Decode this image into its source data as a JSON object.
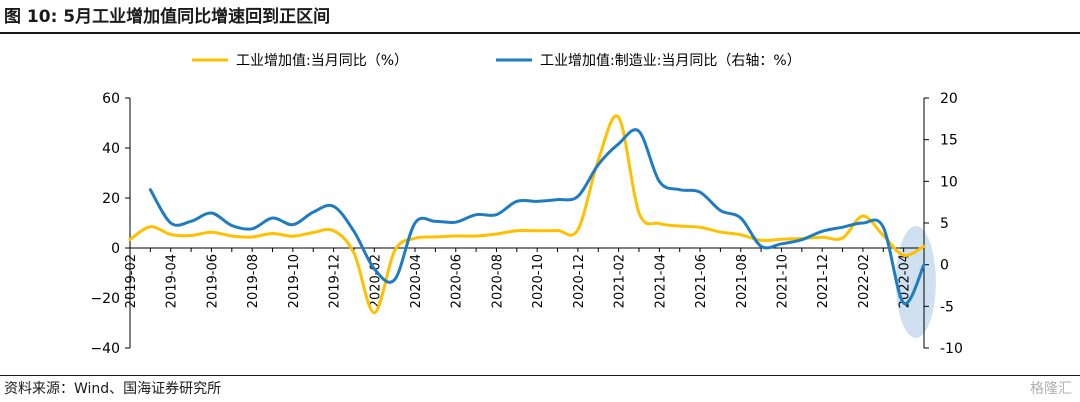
{
  "header": {
    "title": "图 10:   5月工业增加值同比增速回到正区间"
  },
  "footer": {
    "source": "资料来源：Wind、国海证券研究所",
    "watermark": "格隆汇"
  },
  "chart_data": {
    "type": "line",
    "dual_axis": true,
    "legend_position": "top",
    "grid": false,
    "y_left_lim": [
      -40,
      60
    ],
    "y_left_ticks": [
      -40,
      -20,
      0,
      20,
      40,
      60
    ],
    "y_left_tick_labels": [
      "−40",
      "−20",
      "0",
      "20",
      "40",
      "60"
    ],
    "y_right_lim": [
      -10,
      20
    ],
    "y_right_ticks": [
      -10,
      -5,
      0,
      5,
      10,
      15,
      20
    ],
    "y_right_tick_labels": [
      "-10",
      "-5",
      "0",
      "5",
      "10",
      "15",
      "20"
    ],
    "x": [
      "2019-02",
      "2019-03",
      "2019-04",
      "2019-05",
      "2019-06",
      "2019-07",
      "2019-08",
      "2019-09",
      "2019-10",
      "2019-11",
      "2019-12",
      "2020-01",
      "2020-02",
      "2020-03",
      "2020-04",
      "2020-05",
      "2020-06",
      "2020-07",
      "2020-08",
      "2020-09",
      "2020-10",
      "2020-11",
      "2020-12",
      "2021-01",
      "2021-02",
      "2021-03",
      "2021-04",
      "2021-05",
      "2021-06",
      "2021-07",
      "2021-08",
      "2021-09",
      "2021-10",
      "2021-11",
      "2021-12",
      "2022-01",
      "2022-02",
      "2022-03",
      "2022-04",
      "2022-05"
    ],
    "x_tick_labels": [
      "2019-02",
      "2019-04",
      "2019-06",
      "2019-08",
      "2019-10",
      "2019-12",
      "2020-02",
      "2020-04",
      "2020-06",
      "2020-08",
      "2020-10",
      "2020-12",
      "2021-02",
      "2021-04",
      "2021-06",
      "2021-08",
      "2021-10",
      "2021-12",
      "2022-02",
      "2022-04"
    ],
    "series": [
      {
        "name": "工业增加值:当月同比（%）",
        "axis": "left",
        "color": "#FFC000",
        "values": [
          3.4,
          8.5,
          5.4,
          5.0,
          6.3,
          4.8,
          4.4,
          5.8,
          4.7,
          6.2,
          6.9,
          -2.0,
          -25.9,
          -1.1,
          3.9,
          4.4,
          4.8,
          4.8,
          5.6,
          6.9,
          6.9,
          7.0,
          7.3,
          35.1,
          52.3,
          14.1,
          9.8,
          8.8,
          8.3,
          6.4,
          5.3,
          3.1,
          3.5,
          3.8,
          4.3,
          4.0,
          12.8,
          5.0,
          -2.9,
          0.7
        ]
      },
      {
        "name": "工业增加值:制造业:当月同比（右轴：%）",
        "axis": "right",
        "color": "#1F7CC0",
        "values": [
          null,
          9.0,
          5.0,
          5.2,
          6.2,
          4.7,
          4.3,
          5.6,
          4.8,
          6.3,
          7.0,
          4.0,
          -0.5,
          -1.8,
          5.0,
          5.2,
          5.1,
          6.0,
          6.0,
          7.6,
          7.6,
          7.8,
          8.2,
          12.0,
          14.5,
          16.0,
          10.0,
          9.0,
          8.7,
          6.5,
          5.6,
          2.2,
          2.5,
          3.0,
          4.0,
          4.5,
          5.0,
          4.5,
          -4.6,
          0.0
        ]
      }
    ]
  }
}
